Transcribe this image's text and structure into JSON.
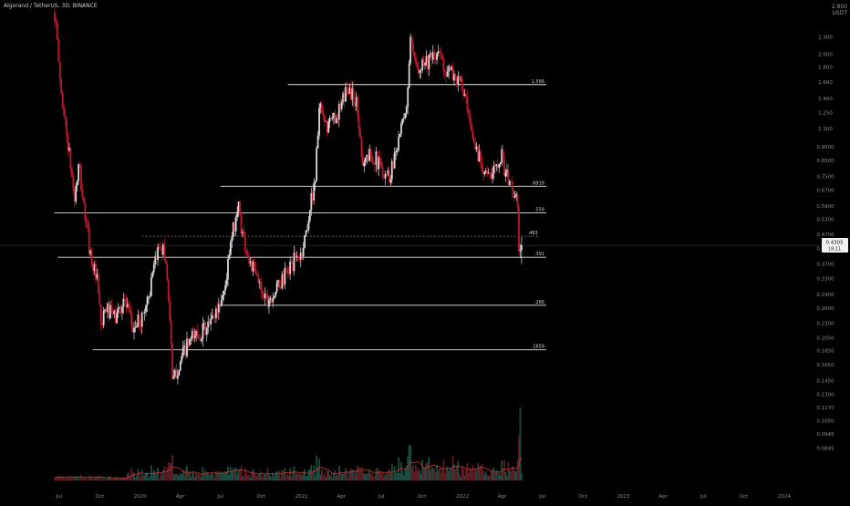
{
  "header": {
    "title": "Algorand / TetherUS, 3D, BINANCE"
  },
  "price_axis": {
    "top_label": "2.800",
    "unit_label": "USDT"
  },
  "colors": {
    "background": "#000000",
    "up_candle": "#d8d8d8",
    "down_candle": "#c2182b",
    "level_line": "#e6e6e6",
    "dashed_line": "#8a8a8a",
    "crosshair": "#3a3a3a",
    "volume_up": "#1d4a40",
    "volume_down": "#5a1b22",
    "volume_ma": "#c0392b",
    "axis_text": "#8c8c8c"
  },
  "current_price": {
    "price": "0.4305",
    "countdown": "18:11"
  },
  "chart_data": {
    "type": "candlestick",
    "symbol": "Algorand / TetherUS",
    "interval": "3D",
    "exchange": "BINANCE",
    "y_scale": "log",
    "ylim": [
      0.0685,
      3.0
    ],
    "y_ticks": [
      "2.600",
      "2.300",
      "2.000",
      "1.800",
      "1.600",
      "1.400",
      "1.250",
      "1.100",
      "0.9500",
      "0.8500",
      "0.7500",
      "0.6700",
      "0.5900",
      "0.5300",
      "0.4700",
      "0.4200",
      "0.3700",
      "0.3300",
      "0.2900",
      "0.2600",
      "0.2300",
      "0.2050",
      "0.1850",
      "0.1650",
      "0.1450",
      "0.1300",
      "0.1170",
      "0.1050",
      "0.0945",
      "0.0845"
    ],
    "x_ticks": [
      {
        "label": "Jul",
        "date": "2019-07-01"
      },
      {
        "label": "Oct",
        "date": "2019-10-01"
      },
      {
        "label": "2020",
        "date": "2020-01-01"
      },
      {
        "label": "Apr",
        "date": "2020-04-01"
      },
      {
        "label": "Jul",
        "date": "2020-07-01"
      },
      {
        "label": "Oct",
        "date": "2020-10-01"
      },
      {
        "label": "2021",
        "date": "2021-01-01"
      },
      {
        "label": "Apr",
        "date": "2021-04-01"
      },
      {
        "label": "Jul",
        "date": "2021-07-01"
      },
      {
        "label": "Oct",
        "date": "2021-10-01"
      },
      {
        "label": "2022",
        "date": "2022-01-01"
      },
      {
        "label": "Apr",
        "date": "2022-04-01"
      },
      {
        "label": "Jul",
        "date": "2022-07-01"
      },
      {
        "label": "Oct",
        "date": "2022-10-01"
      },
      {
        "label": "2023",
        "date": "2023-01-01"
      },
      {
        "label": "Apr",
        "date": "2023-04-01"
      },
      {
        "label": "Jul",
        "date": "2023-07-01"
      },
      {
        "label": "Oct",
        "date": "2023-10-01"
      },
      {
        "label": "2024",
        "date": "2024-01-01"
      }
    ],
    "levels": [
      {
        "label": "1.566",
        "value": 1.566,
        "from": "2020-12-01",
        "to": "2022-07-10"
      },
      {
        "label": ".6918",
        "value": 0.6918,
        "from": "2020-07-01",
        "to": "2022-07-10"
      },
      {
        "label": ".559",
        "value": 0.559,
        "from": "2019-06-20",
        "to": "2022-07-10"
      },
      {
        "label": ".391",
        "value": 0.391,
        "from": "2019-06-28",
        "to": "2022-07-10"
      },
      {
        "label": ".266",
        "value": 0.266,
        "from": "2020-06-25",
        "to": "2022-07-10"
      },
      {
        "label": ".1859",
        "value": 0.1859,
        "from": "2019-09-15",
        "to": "2022-07-10"
      }
    ],
    "dashed_level": {
      "label": ".463",
      "value": 0.463,
      "from": "2020-01-05",
      "to": "2022-06-25"
    },
    "current_price": 0.4305,
    "price_path": [
      [
        "2019-06-21",
        2.8
      ],
      [
        "2019-07-05",
        1.5
      ],
      [
        "2019-07-20",
        1.0
      ],
      [
        "2019-08-05",
        0.62
      ],
      [
        "2019-08-15",
        0.82
      ],
      [
        "2019-08-25",
        0.6
      ],
      [
        "2019-09-10",
        0.4
      ],
      [
        "2019-09-25",
        0.32
      ],
      [
        "2019-10-05",
        0.22
      ],
      [
        "2019-10-15",
        0.26
      ],
      [
        "2019-11-05",
        0.24
      ],
      [
        "2019-11-25",
        0.28
      ],
      [
        "2019-12-15",
        0.22
      ],
      [
        "2020-01-05",
        0.24
      ],
      [
        "2020-01-25",
        0.31
      ],
      [
        "2020-02-15",
        0.45
      ],
      [
        "2020-02-28",
        0.38
      ],
      [
        "2020-03-10",
        0.22
      ],
      [
        "2020-03-14",
        0.14
      ],
      [
        "2020-03-25",
        0.16
      ],
      [
        "2020-04-15",
        0.19
      ],
      [
        "2020-05-05",
        0.21
      ],
      [
        "2020-06-01",
        0.22
      ],
      [
        "2020-06-25",
        0.26
      ],
      [
        "2020-07-10",
        0.3
      ],
      [
        "2020-07-25",
        0.44
      ],
      [
        "2020-08-10",
        0.6
      ],
      [
        "2020-08-20",
        0.47
      ],
      [
        "2020-09-05",
        0.38
      ],
      [
        "2020-09-25",
        0.32
      ],
      [
        "2020-10-15",
        0.28
      ],
      [
        "2020-11-05",
        0.3
      ],
      [
        "2020-11-25",
        0.34
      ],
      [
        "2020-12-15",
        0.38
      ],
      [
        "2021-01-01",
        0.4
      ],
      [
        "2021-01-15",
        0.52
      ],
      [
        "2021-02-01",
        0.75
      ],
      [
        "2021-02-10",
        1.3
      ],
      [
        "2021-02-25",
        1.1
      ],
      [
        "2021-03-15",
        1.2
      ],
      [
        "2021-04-01",
        1.3
      ],
      [
        "2021-04-15",
        1.55
      ],
      [
        "2021-05-05",
        1.35
      ],
      [
        "2021-05-20",
        0.85
      ],
      [
        "2021-06-10",
        0.9
      ],
      [
        "2021-07-01",
        0.8
      ],
      [
        "2021-07-20",
        0.75
      ],
      [
        "2021-08-10",
        1.05
      ],
      [
        "2021-08-25",
        1.2
      ],
      [
        "2021-09-05",
        2.2
      ],
      [
        "2021-09-15",
        1.8
      ],
      [
        "2021-10-05",
        1.9
      ],
      [
        "2021-10-25",
        1.9
      ],
      [
        "2021-11-10",
        2.0
      ],
      [
        "2021-11-25",
        1.75
      ],
      [
        "2021-12-10",
        1.7
      ],
      [
        "2021-12-25",
        1.6
      ],
      [
        "2022-01-05",
        1.45
      ],
      [
        "2022-01-20",
        1.05
      ],
      [
        "2022-02-05",
        0.9
      ],
      [
        "2022-02-20",
        0.8
      ],
      [
        "2022-03-05",
        0.72
      ],
      [
        "2022-03-20",
        0.85
      ],
      [
        "2022-03-30",
        0.9
      ],
      [
        "2022-04-10",
        0.75
      ],
      [
        "2022-04-25",
        0.68
      ],
      [
        "2022-05-05",
        0.6
      ],
      [
        "2022-05-10",
        0.4
      ],
      [
        "2022-05-15",
        0.43
      ]
    ]
  }
}
